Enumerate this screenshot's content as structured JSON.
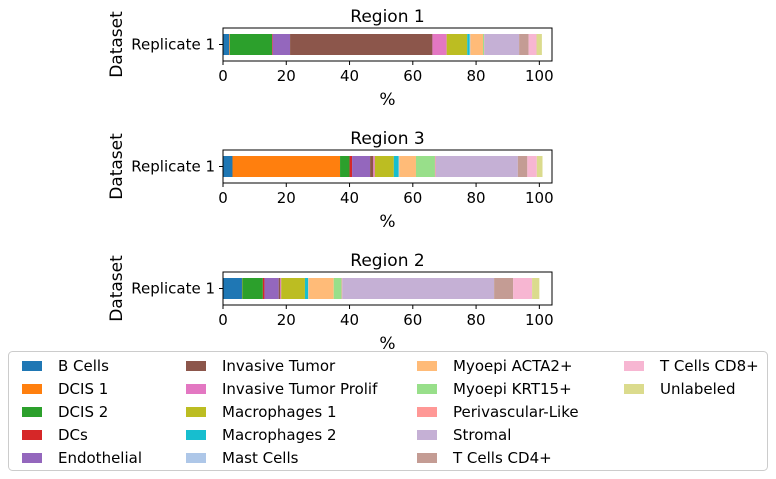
{
  "chart_data": {
    "type": "bar",
    "orientation": "horizontal",
    "stacked": true,
    "xlim": [
      0,
      104
    ],
    "xticks": [
      "0",
      "20",
      "40",
      "60",
      "80",
      "100"
    ],
    "xlabel": "%",
    "ylabel": "Dataset",
    "grid": false,
    "legend_position": "bottom",
    "legend_columns": 4,
    "categories": [
      "B Cells",
      "DCIS 1",
      "DCIS 2",
      "DCs",
      "Endothelial",
      "Invasive Tumor",
      "Invasive Tumor Prolif",
      "Macrophages 1",
      "Macrophages 2",
      "Mast Cells",
      "Myoepi ACTA2+",
      "Myoepi KRT15+",
      "Perivascular-Like",
      "Stromal",
      "T Cells CD4+",
      "T Cells CD8+",
      "Unlabeled"
    ],
    "colors": [
      "#1f77b4",
      "#ff7f0e",
      "#2ca02c",
      "#d62728",
      "#9467bd",
      "#8c564b",
      "#e377c2",
      "#bcbd22",
      "#17becf",
      "#aec7e8",
      "#ffbb78",
      "#98df8a",
      "#ff9896",
      "#c5b0d5",
      "#c49c94",
      "#f7b6d2",
      "#dbdb8d"
    ],
    "panels": [
      {
        "title": "Region 1",
        "row_label": "Replicate 1",
        "values": [
          2.0,
          0.2,
          13.3,
          0.2,
          5.5,
          45.0,
          4.5,
          6.5,
          0.8,
          0.2,
          4.0,
          0.3,
          0.1,
          11.0,
          3.0,
          2.5,
          1.7
        ]
      },
      {
        "title": "Region 3",
        "row_label": "Replicate 1",
        "values": [
          3.0,
          34.0,
          3.0,
          0.8,
          5.7,
          1.0,
          0.5,
          6.0,
          1.5,
          0.2,
          5.3,
          6.0,
          0.2,
          26.0,
          3.0,
          3.0,
          1.8
        ]
      },
      {
        "title": "Region 2",
        "row_label": "Replicate 1",
        "values": [
          6.0,
          0.1,
          6.5,
          0.5,
          4.5,
          0.5,
          0.3,
          7.5,
          1.0,
          0.1,
          8.0,
          2.5,
          0.2,
          48.0,
          6.0,
          6.0,
          2.3
        ]
      }
    ]
  }
}
